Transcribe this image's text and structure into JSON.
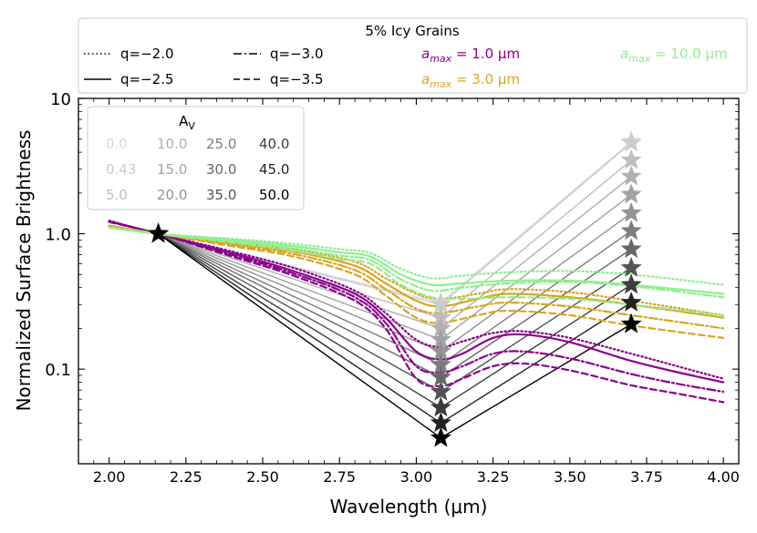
{
  "chart_data": {
    "type": "line",
    "title": "",
    "xlabel": "Wavelength (μm)",
    "ylabel": "Normalized Surface Brightness",
    "xlim": [
      1.9,
      4.05
    ],
    "ylim": [
      0.02,
      10
    ],
    "yscale": "log",
    "x_ticks": [
      "2.00",
      "2.25",
      "2.50",
      "2.75",
      "3.00",
      "3.25",
      "3.50",
      "3.75",
      "4.00"
    ],
    "y_ticks": [
      "0.1",
      "1.0",
      "10"
    ],
    "legend_top": {
      "title": "5% Icy Grains",
      "line_styles": [
        {
          "label": "q=−2.0",
          "style": "dotted"
        },
        {
          "label": "q=−2.5",
          "style": "solid"
        },
        {
          "label": "q=−3.0",
          "style": "dashdot"
        },
        {
          "label": "q=−3.5",
          "style": "dashed"
        }
      ],
      "sizes": [
        {
          "prefix": "a",
          "sub": "max",
          "suffix": " = 1.0 μm",
          "color": "#8b008b"
        },
        {
          "prefix": "a",
          "sub": "max",
          "suffix": " = 3.0 μm",
          "color": "#daa520"
        },
        {
          "prefix": "a",
          "sub": "max",
          "suffix": " = 10.0 μm",
          "color": "#90ee90"
        }
      ]
    },
    "av_legend": {
      "title_main": "A",
      "title_sub": "V",
      "values": [
        "0.0",
        "0.43",
        "5.0",
        "10.0",
        "15.0",
        "20.0",
        "25.0",
        "30.0",
        "35.0",
        "40.0",
        "45.0",
        "50.0"
      ]
    },
    "extinction_anchor": {
      "x": 2.16,
      "y": 1.0
    },
    "av_markers": {
      "x_mid": 3.08,
      "x_end": 3.7,
      "av": [
        0.0,
        0.43,
        5.0,
        10.0,
        15.0,
        20.0,
        25.0,
        30.0,
        35.0,
        40.0,
        45.0,
        50.0
      ],
      "y_mid": [
        0.31,
        0.3,
        0.24,
        0.2,
        0.165,
        0.135,
        0.108,
        0.087,
        0.068,
        0.052,
        0.04,
        0.031
      ],
      "y_end": [
        4.8,
        4.7,
        3.5,
        2.65,
        1.95,
        1.42,
        1.05,
        0.77,
        0.56,
        0.42,
        0.31,
        0.215
      ]
    },
    "model_curves": [
      {
        "size": "1.0",
        "q": "-2.0",
        "style": "dotted",
        "x": [
          2.0,
          2.16,
          2.4,
          2.6,
          2.8,
          2.9,
          3.0,
          3.08,
          3.15,
          3.25,
          3.35,
          3.5,
          3.7,
          3.85,
          4.0
        ],
        "y": [
          1.25,
          1.0,
          0.74,
          0.56,
          0.38,
          0.26,
          0.165,
          0.145,
          0.16,
          0.185,
          0.19,
          0.17,
          0.13,
          0.105,
          0.085
        ]
      },
      {
        "size": "1.0",
        "q": "-2.5",
        "style": "solid",
        "x": [
          2.0,
          2.16,
          2.4,
          2.6,
          2.8,
          2.9,
          3.0,
          3.08,
          3.15,
          3.25,
          3.35,
          3.5,
          3.7,
          3.85,
          4.0
        ],
        "y": [
          1.24,
          1.0,
          0.72,
          0.53,
          0.36,
          0.24,
          0.135,
          0.118,
          0.13,
          0.17,
          0.18,
          0.158,
          0.115,
          0.095,
          0.08
        ]
      },
      {
        "size": "1.0",
        "q": "-3.0",
        "style": "dashdot",
        "x": [
          2.0,
          2.16,
          2.4,
          2.6,
          2.8,
          2.9,
          3.0,
          3.08,
          3.15,
          3.25,
          3.35,
          3.5,
          3.7,
          3.85,
          4.0
        ],
        "y": [
          1.23,
          1.0,
          0.7,
          0.51,
          0.34,
          0.22,
          0.105,
          0.095,
          0.105,
          0.13,
          0.135,
          0.12,
          0.092,
          0.078,
          0.068
        ]
      },
      {
        "size": "1.0",
        "q": "-3.5",
        "style": "dashed",
        "x": [
          2.0,
          2.16,
          2.4,
          2.6,
          2.8,
          2.9,
          3.0,
          3.08,
          3.15,
          3.25,
          3.35,
          3.5,
          3.7,
          3.85,
          4.0
        ],
        "y": [
          1.22,
          1.0,
          0.68,
          0.49,
          0.32,
          0.2,
          0.085,
          0.075,
          0.085,
          0.105,
          0.11,
          0.098,
          0.076,
          0.066,
          0.057
        ]
      },
      {
        "size": "3.0",
        "q": "-2.0",
        "style": "dotted",
        "x": [
          2.0,
          2.16,
          2.4,
          2.6,
          2.8,
          2.9,
          3.0,
          3.08,
          3.2,
          3.3,
          3.5,
          3.7,
          4.0
        ],
        "y": [
          1.15,
          1.0,
          0.87,
          0.77,
          0.62,
          0.47,
          0.36,
          0.33,
          0.36,
          0.39,
          0.37,
          0.32,
          0.25
        ]
      },
      {
        "size": "3.0",
        "q": "-2.5",
        "style": "solid",
        "x": [
          2.0,
          2.16,
          2.4,
          2.6,
          2.8,
          2.9,
          3.0,
          3.08,
          3.2,
          3.3,
          3.5,
          3.7,
          4.0
        ],
        "y": [
          1.15,
          1.0,
          0.85,
          0.74,
          0.58,
          0.43,
          0.32,
          0.29,
          0.33,
          0.36,
          0.34,
          0.3,
          0.24
        ]
      },
      {
        "size": "3.0",
        "q": "-3.0",
        "style": "dashdot",
        "x": [
          2.0,
          2.16,
          2.4,
          2.6,
          2.8,
          2.9,
          3.0,
          3.08,
          3.2,
          3.3,
          3.5,
          3.7,
          4.0
        ],
        "y": [
          1.14,
          1.0,
          0.83,
          0.71,
          0.54,
          0.39,
          0.28,
          0.26,
          0.29,
          0.31,
          0.29,
          0.25,
          0.2
        ]
      },
      {
        "size": "3.0",
        "q": "-3.5",
        "style": "dashed",
        "x": [
          2.0,
          2.16,
          2.4,
          2.6,
          2.8,
          2.9,
          3.0,
          3.08,
          3.2,
          3.3,
          3.5,
          3.7,
          4.0
        ],
        "y": [
          1.14,
          1.0,
          0.81,
          0.68,
          0.5,
          0.35,
          0.24,
          0.22,
          0.25,
          0.27,
          0.25,
          0.21,
          0.17
        ]
      },
      {
        "size": "10.0",
        "q": "-2.0",
        "style": "dotted",
        "x": [
          2.0,
          2.16,
          2.4,
          2.6,
          2.75,
          2.85,
          2.95,
          3.05,
          3.15,
          3.3,
          3.5,
          3.7,
          4.0
        ],
        "y": [
          1.12,
          1.0,
          0.92,
          0.84,
          0.77,
          0.72,
          0.55,
          0.47,
          0.49,
          0.52,
          0.53,
          0.5,
          0.42
        ]
      },
      {
        "size": "10.0",
        "q": "-2.5",
        "style": "solid",
        "x": [
          2.0,
          2.16,
          2.4,
          2.6,
          2.75,
          2.85,
          2.95,
          3.05,
          3.15,
          3.3,
          3.5,
          3.7,
          4.0
        ],
        "y": [
          1.12,
          1.0,
          0.9,
          0.81,
          0.73,
          0.68,
          0.5,
          0.42,
          0.43,
          0.45,
          0.45,
          0.42,
          0.36
        ]
      },
      {
        "size": "10.0",
        "q": "-3.0",
        "style": "dashdot",
        "x": [
          2.0,
          2.16,
          2.4,
          2.6,
          2.75,
          2.85,
          2.95,
          3.05,
          3.15,
          3.3,
          3.5,
          3.7,
          4.0
        ],
        "y": [
          1.11,
          1.0,
          0.88,
          0.78,
          0.69,
          0.64,
          0.46,
          0.38,
          0.4,
          0.43,
          0.44,
          0.41,
          0.34
        ]
      },
      {
        "size": "10.0",
        "q": "-3.5",
        "style": "dashed",
        "x": [
          2.0,
          2.16,
          2.4,
          2.6,
          2.75,
          2.85,
          2.95,
          3.05,
          3.15,
          3.3,
          3.5,
          3.7,
          4.0
        ],
        "y": [
          1.11,
          1.0,
          0.86,
          0.75,
          0.65,
          0.6,
          0.42,
          0.34,
          0.33,
          0.34,
          0.33,
          0.3,
          0.25
        ]
      }
    ],
    "colors": {
      "1.0": "#8b008b",
      "3.0": "#daa520",
      "10.0": "#90ee90",
      "av_grays": [
        "#d9d9d9",
        "#cccccc",
        "#bebebe",
        "#b0b0b0",
        "#a2a2a2",
        "#939393",
        "#7d7d7d",
        "#686868",
        "#535353",
        "#3c3c3c",
        "#222222",
        "#000000"
      ]
    },
    "grid": false
  }
}
